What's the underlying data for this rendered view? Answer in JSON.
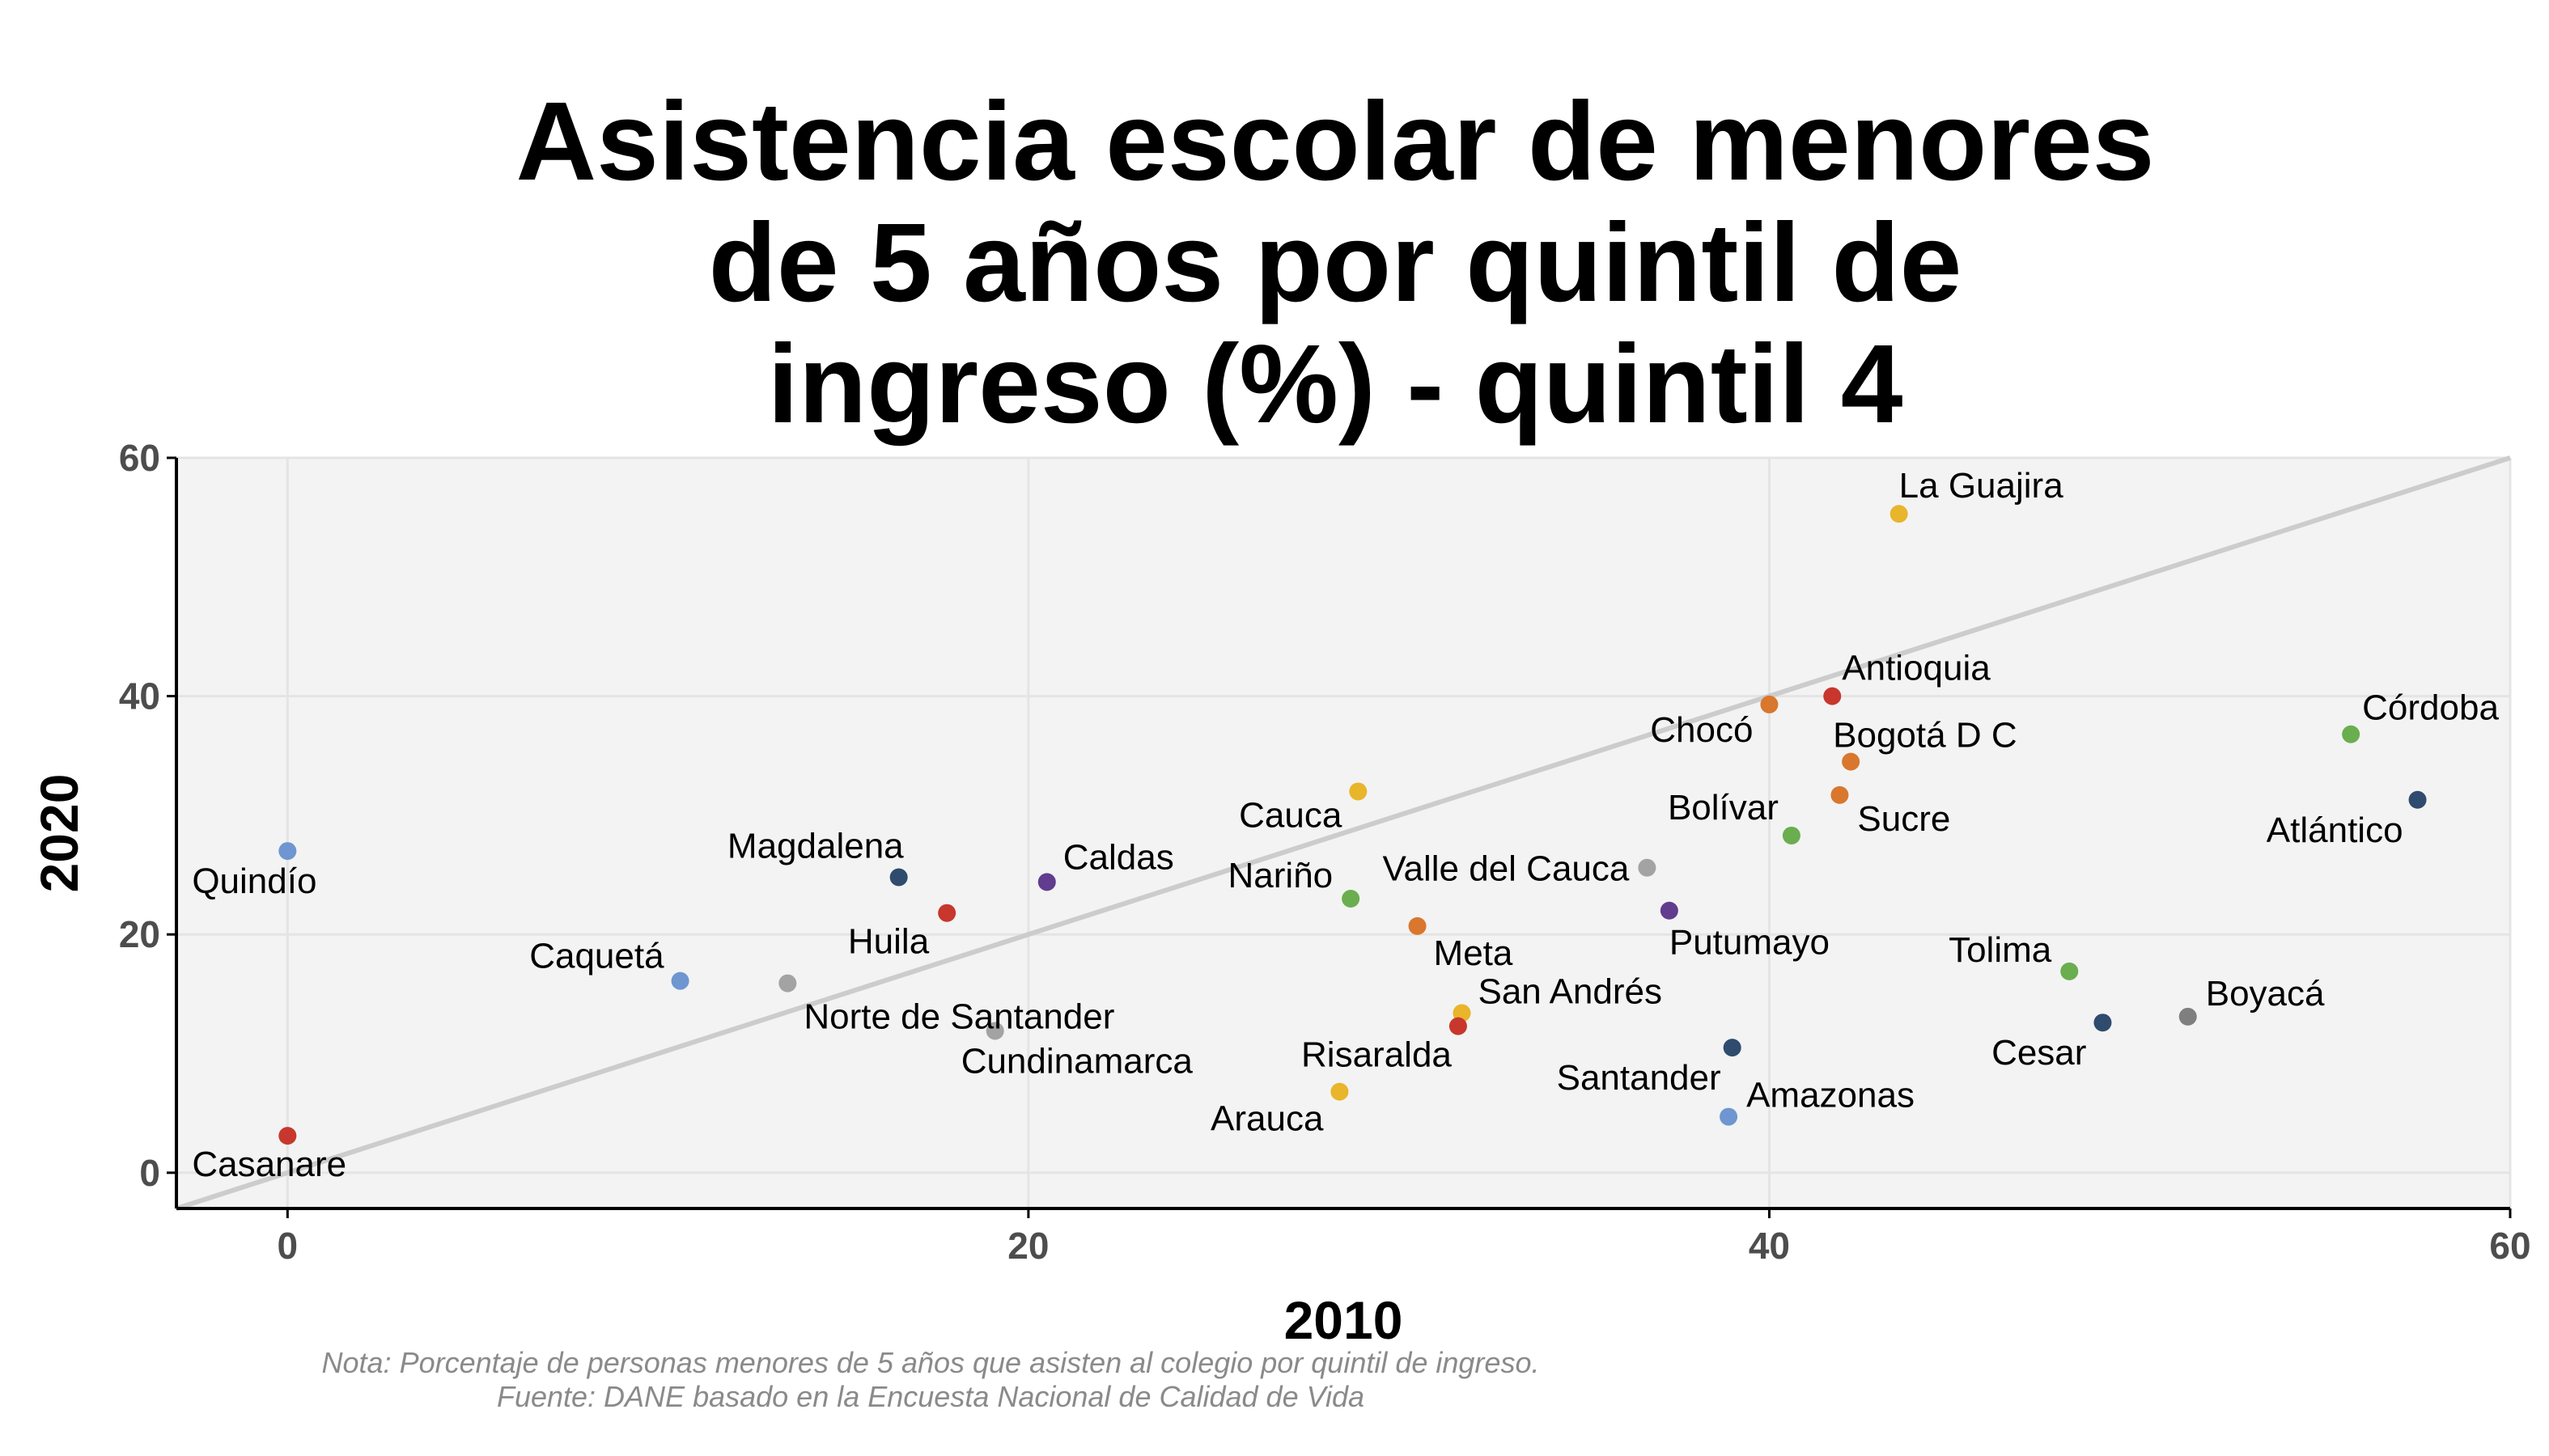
{
  "chart_data": {
    "type": "scatter",
    "title_lines": [
      "Asistencia escolar de menores",
      "de 5 años por quintil de",
      "ingreso (%) - quintil 4"
    ],
    "xlabel": "2010",
    "ylabel": "2020",
    "xlim": [
      -3,
      60
    ],
    "ylim": [
      -3,
      60
    ],
    "xticks": [
      0,
      20,
      40,
      60
    ],
    "yticks": [
      0,
      20,
      40,
      60
    ],
    "grid": true,
    "reference_line": "y = x",
    "points": [
      {
        "label": "La Guajira",
        "x": 43.5,
        "y": 55.3,
        "color": "#E8B52B"
      },
      {
        "label": "Antioquia",
        "x": 41.7,
        "y": 40.0,
        "color": "#C8372D"
      },
      {
        "label": "Chocó",
        "x": 40.0,
        "y": 39.3,
        "color": "#D9772E"
      },
      {
        "label": "Córdoba",
        "x": 55.7,
        "y": 36.8,
        "color": "#6AAE4F"
      },
      {
        "label": "Bogotá D C",
        "x": 42.2,
        "y": 34.5,
        "color": "#D9772E"
      },
      {
        "label": "Cauca",
        "x": 28.9,
        "y": 32.0,
        "color": "#E8B52B"
      },
      {
        "label": "Sucre",
        "x": 41.9,
        "y": 31.7,
        "color": "#D9772E"
      },
      {
        "label": "Atlántico",
        "x": 57.5,
        "y": 31.3,
        "color": "#2F4B6E"
      },
      {
        "label": "Bolívar",
        "x": 40.6,
        "y": 28.3,
        "color": "#6AAE4F"
      },
      {
        "label": "Quindío",
        "x": 0.0,
        "y": 27.0,
        "color": "#6F96D0"
      },
      {
        "label": "Valle del Cauca",
        "x": 36.7,
        "y": 25.6,
        "color": "#A3A3A3"
      },
      {
        "label": "Magdalena",
        "x": 16.5,
        "y": 24.8,
        "color": "#2F4B6E"
      },
      {
        "label": "Caldas",
        "x": 20.5,
        "y": 24.4,
        "color": "#613C8F"
      },
      {
        "label": "Nariño",
        "x": 28.7,
        "y": 23.0,
        "color": "#6AAE4F"
      },
      {
        "label": "Putumayo",
        "x": 37.3,
        "y": 22.0,
        "color": "#613C8F"
      },
      {
        "label": "Huila",
        "x": 17.8,
        "y": 21.8,
        "color": "#C8372D"
      },
      {
        "label": "Meta",
        "x": 30.5,
        "y": 20.7,
        "color": "#D9772E"
      },
      {
        "label": "Tolima",
        "x": 48.1,
        "y": 16.9,
        "color": "#6AAE4F"
      },
      {
        "label": "Caquetá",
        "x": 10.6,
        "y": 16.1,
        "color": "#6F96D0"
      },
      {
        "label": "Norte de Santander",
        "x": 13.5,
        "y": 15.9,
        "color": "#A3A3A3"
      },
      {
        "label": "San Andrés",
        "x": 31.7,
        "y": 13.4,
        "color": "#E8B52B"
      },
      {
        "label": "Boyacá",
        "x": 51.3,
        "y": 13.1,
        "color": "#7F7F7F"
      },
      {
        "label": "Cesar",
        "x": 49.0,
        "y": 12.6,
        "color": "#2F4B6E"
      },
      {
        "label": "Risaralda",
        "x": 31.6,
        "y": 12.3,
        "color": "#C8372D"
      },
      {
        "label": "Cundinamarca",
        "x": 19.1,
        "y": 11.9,
        "color": "#A3A3A3"
      },
      {
        "label": "Santander",
        "x": 39.0,
        "y": 10.5,
        "color": "#2F4B6E"
      },
      {
        "label": "Arauca",
        "x": 28.4,
        "y": 6.8,
        "color": "#E8B52B"
      },
      {
        "label": "Amazonas",
        "x": 38.9,
        "y": 4.7,
        "color": "#6F96D0"
      },
      {
        "label": "Casanare",
        "x": 0.0,
        "y": 3.1,
        "color": "#C8372D"
      }
    ]
  },
  "note_lines": [
    "Nota: Porcentaje de personas menores de 5 años que asisten al colegio por quintil de ingreso.",
    "Fuente: DANE basado en la Encuesta Nacional de Calidad de Vida"
  ]
}
